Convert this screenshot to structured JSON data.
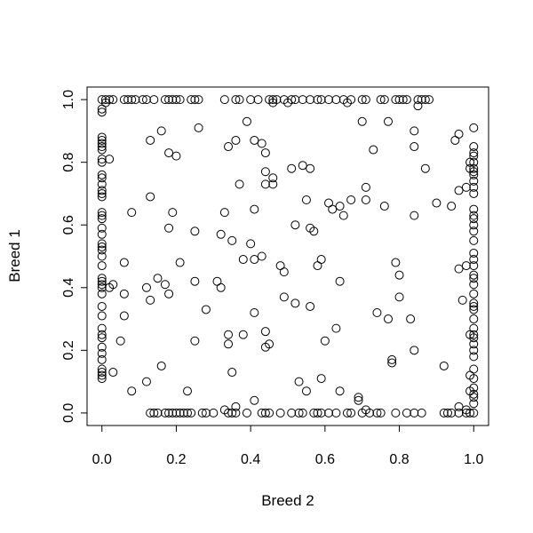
{
  "chart_data": {
    "type": "scatter",
    "title": "",
    "xlabel": "Breed 2",
    "ylabel": "Breed 1",
    "xlim": [
      -0.04,
      1.04
    ],
    "ylim": [
      -0.04,
      1.04
    ],
    "x_ticks": [
      "0.0",
      "0.2",
      "0.4",
      "0.6",
      "0.8",
      "1.0"
    ],
    "y_ticks": [
      "0.0",
      "0.2",
      "0.4",
      "0.6",
      "0.8",
      "1.0"
    ],
    "grid": false,
    "legend": "none",
    "marker": "open-circle",
    "marker_color": "#000000",
    "series": [
      {
        "points": [
          [
            0.0,
            1.0
          ],
          [
            0.01,
            1.0
          ],
          [
            0.02,
            1.0
          ],
          [
            0.03,
            1.0
          ],
          [
            0.06,
            1.0
          ],
          [
            0.07,
            1.0
          ],
          [
            0.08,
            1.0
          ],
          [
            0.09,
            1.0
          ],
          [
            0.11,
            1.0
          ],
          [
            0.12,
            1.0
          ],
          [
            0.14,
            1.0
          ],
          [
            0.17,
            1.0
          ],
          [
            0.18,
            1.0
          ],
          [
            0.19,
            1.0
          ],
          [
            0.2,
            1.0
          ],
          [
            0.21,
            1.0
          ],
          [
            0.24,
            1.0
          ],
          [
            0.25,
            1.0
          ],
          [
            0.26,
            1.0
          ],
          [
            0.33,
            1.0
          ],
          [
            0.36,
            1.0
          ],
          [
            0.37,
            1.0
          ],
          [
            0.4,
            1.0
          ],
          [
            0.42,
            1.0
          ],
          [
            0.45,
            1.0
          ],
          [
            0.46,
            1.0
          ],
          [
            0.47,
            1.0
          ],
          [
            0.49,
            1.0
          ],
          [
            0.51,
            1.0
          ],
          [
            0.52,
            1.0
          ],
          [
            0.54,
            1.0
          ],
          [
            0.56,
            1.0
          ],
          [
            0.58,
            1.0
          ],
          [
            0.59,
            1.0
          ],
          [
            0.61,
            1.0
          ],
          [
            0.63,
            1.0
          ],
          [
            0.65,
            1.0
          ],
          [
            0.67,
            1.0
          ],
          [
            0.7,
            1.0
          ],
          [
            0.71,
            1.0
          ],
          [
            0.75,
            1.0
          ],
          [
            0.76,
            1.0
          ],
          [
            0.79,
            1.0
          ],
          [
            0.8,
            1.0
          ],
          [
            0.81,
            1.0
          ],
          [
            0.82,
            1.0
          ],
          [
            0.85,
            1.0
          ],
          [
            0.86,
            1.0
          ],
          [
            0.87,
            1.0
          ],
          [
            0.88,
            1.0
          ],
          [
            0.01,
            0.99
          ],
          [
            0.46,
            0.99
          ],
          [
            0.5,
            0.99
          ],
          [
            0.66,
            0.99
          ],
          [
            0.85,
            0.98
          ],
          [
            0.13,
            0.0
          ],
          [
            0.14,
            0.0
          ],
          [
            0.15,
            0.0
          ],
          [
            0.17,
            0.0
          ],
          [
            0.18,
            0.0
          ],
          [
            0.19,
            0.0
          ],
          [
            0.2,
            0.0
          ],
          [
            0.21,
            0.0
          ],
          [
            0.22,
            0.0
          ],
          [
            0.23,
            0.0
          ],
          [
            0.24,
            0.0
          ],
          [
            0.27,
            0.0
          ],
          [
            0.28,
            0.0
          ],
          [
            0.3,
            0.0
          ],
          [
            0.34,
            0.0
          ],
          [
            0.35,
            0.0
          ],
          [
            0.36,
            0.0
          ],
          [
            0.39,
            0.0
          ],
          [
            0.43,
            0.0
          ],
          [
            0.44,
            0.0
          ],
          [
            0.45,
            0.0
          ],
          [
            0.48,
            0.0
          ],
          [
            0.51,
            0.0
          ],
          [
            0.53,
            0.0
          ],
          [
            0.54,
            0.0
          ],
          [
            0.57,
            0.0
          ],
          [
            0.58,
            0.0
          ],
          [
            0.59,
            0.0
          ],
          [
            0.61,
            0.0
          ],
          [
            0.63,
            0.0
          ],
          [
            0.66,
            0.0
          ],
          [
            0.67,
            0.0
          ],
          [
            0.7,
            0.0
          ],
          [
            0.72,
            0.0
          ],
          [
            0.74,
            0.0
          ],
          [
            0.75,
            0.0
          ],
          [
            0.79,
            0.0
          ],
          [
            0.82,
            0.0
          ],
          [
            0.84,
            0.0
          ],
          [
            0.86,
            0.0
          ],
          [
            0.92,
            0.0
          ],
          [
            0.93,
            0.0
          ],
          [
            0.94,
            0.0
          ],
          [
            0.96,
            0.0
          ],
          [
            0.98,
            0.0
          ],
          [
            0.99,
            0.0
          ],
          [
            1.0,
            0.0
          ],
          [
            0.33,
            0.01
          ],
          [
            0.36,
            0.02
          ],
          [
            0.69,
            0.05
          ],
          [
            0.71,
            0.01
          ],
          [
            0.96,
            0.02
          ],
          [
            0.98,
            0.01
          ],
          [
            0.0,
            0.11
          ],
          [
            0.0,
            0.12
          ],
          [
            0.0,
            0.13
          ],
          [
            0.0,
            0.14
          ],
          [
            0.0,
            0.17
          ],
          [
            0.0,
            0.19
          ],
          [
            0.0,
            0.21
          ],
          [
            0.0,
            0.24
          ],
          [
            0.0,
            0.25
          ],
          [
            0.0,
            0.27
          ],
          [
            0.0,
            0.31
          ],
          [
            0.0,
            0.34
          ],
          [
            0.0,
            0.38
          ],
          [
            0.0,
            0.4
          ],
          [
            0.0,
            0.41
          ],
          [
            0.0,
            0.42
          ],
          [
            0.0,
            0.43
          ],
          [
            0.0,
            0.47
          ],
          [
            0.0,
            0.5
          ],
          [
            0.0,
            0.52
          ],
          [
            0.0,
            0.53
          ],
          [
            0.0,
            0.54
          ],
          [
            0.0,
            0.57
          ],
          [
            0.0,
            0.59
          ],
          [
            0.0,
            0.62
          ],
          [
            0.0,
            0.63
          ],
          [
            0.0,
            0.64
          ],
          [
            0.0,
            0.69
          ],
          [
            0.0,
            0.7
          ],
          [
            0.0,
            0.71
          ],
          [
            0.0,
            0.73
          ],
          [
            0.0,
            0.75
          ],
          [
            0.0,
            0.76
          ],
          [
            0.0,
            0.8
          ],
          [
            0.0,
            0.81
          ],
          [
            0.0,
            0.84
          ],
          [
            0.0,
            0.85
          ],
          [
            0.0,
            0.86
          ],
          [
            0.0,
            0.87
          ],
          [
            0.0,
            0.88
          ],
          [
            0.0,
            0.96
          ],
          [
            0.0,
            0.97
          ],
          [
            0.02,
            0.81
          ],
          [
            0.02,
            0.4
          ],
          [
            0.03,
            0.13
          ],
          [
            0.03,
            0.41
          ],
          [
            1.0,
            0.91
          ],
          [
            1.0,
            0.85
          ],
          [
            1.0,
            0.83
          ],
          [
            1.0,
            0.82
          ],
          [
            1.0,
            0.8
          ],
          [
            1.0,
            0.78
          ],
          [
            1.0,
            0.77
          ],
          [
            1.0,
            0.76
          ],
          [
            1.0,
            0.74
          ],
          [
            1.0,
            0.72
          ],
          [
            1.0,
            0.7
          ],
          [
            1.0,
            0.65
          ],
          [
            1.0,
            0.63
          ],
          [
            1.0,
            0.62
          ],
          [
            1.0,
            0.6
          ],
          [
            1.0,
            0.58
          ],
          [
            1.0,
            0.55
          ],
          [
            1.0,
            0.51
          ],
          [
            1.0,
            0.49
          ],
          [
            1.0,
            0.47
          ],
          [
            1.0,
            0.44
          ],
          [
            1.0,
            0.43
          ],
          [
            1.0,
            0.41
          ],
          [
            1.0,
            0.38
          ],
          [
            1.0,
            0.35
          ],
          [
            1.0,
            0.34
          ],
          [
            1.0,
            0.33
          ],
          [
            1.0,
            0.3
          ],
          [
            1.0,
            0.27
          ],
          [
            1.0,
            0.25
          ],
          [
            1.0,
            0.24
          ],
          [
            1.0,
            0.22
          ],
          [
            1.0,
            0.2
          ],
          [
            1.0,
            0.18
          ],
          [
            1.0,
            0.14
          ],
          [
            1.0,
            0.11
          ],
          [
            1.0,
            0.08
          ],
          [
            1.0,
            0.06
          ],
          [
            1.0,
            0.05
          ],
          [
            1.0,
            0.03
          ],
          [
            0.99,
            0.8
          ],
          [
            0.99,
            0.78
          ],
          [
            0.99,
            0.25
          ],
          [
            0.99,
            0.12
          ],
          [
            0.99,
            0.07
          ],
          [
            0.98,
            0.72
          ],
          [
            0.98,
            0.47
          ],
          [
            0.05,
            0.23
          ],
          [
            0.06,
            0.31
          ],
          [
            0.06,
            0.38
          ],
          [
            0.06,
            0.48
          ],
          [
            0.08,
            0.64
          ],
          [
            0.08,
            0.07
          ],
          [
            0.12,
            0.1
          ],
          [
            0.12,
            0.4
          ],
          [
            0.13,
            0.87
          ],
          [
            0.13,
            0.36
          ],
          [
            0.13,
            0.69
          ],
          [
            0.15,
            0.43
          ],
          [
            0.16,
            0.9
          ],
          [
            0.16,
            0.15
          ],
          [
            0.17,
            0.41
          ],
          [
            0.18,
            0.83
          ],
          [
            0.18,
            0.59
          ],
          [
            0.18,
            0.38
          ],
          [
            0.19,
            0.64
          ],
          [
            0.2,
            0.82
          ],
          [
            0.21,
            0.48
          ],
          [
            0.23,
            0.07
          ],
          [
            0.25,
            0.58
          ],
          [
            0.25,
            0.42
          ],
          [
            0.25,
            0.23
          ],
          [
            0.26,
            0.91
          ],
          [
            0.28,
            0.33
          ],
          [
            0.31,
            0.42
          ],
          [
            0.32,
            0.4
          ],
          [
            0.32,
            0.57
          ],
          [
            0.33,
            0.64
          ],
          [
            0.34,
            0.85
          ],
          [
            0.34,
            0.25
          ],
          [
            0.34,
            0.22
          ],
          [
            0.35,
            0.55
          ],
          [
            0.35,
            0.13
          ],
          [
            0.36,
            0.87
          ],
          [
            0.37,
            0.73
          ],
          [
            0.38,
            0.49
          ],
          [
            0.38,
            0.25
          ],
          [
            0.39,
            0.93
          ],
          [
            0.4,
            0.54
          ],
          [
            0.41,
            0.87
          ],
          [
            0.41,
            0.65
          ],
          [
            0.41,
            0.32
          ],
          [
            0.41,
            0.49
          ],
          [
            0.41,
            0.04
          ],
          [
            0.43,
            0.5
          ],
          [
            0.43,
            0.86
          ],
          [
            0.44,
            0.77
          ],
          [
            0.44,
            0.73
          ],
          [
            0.44,
            0.83
          ],
          [
            0.44,
            0.26
          ],
          [
            0.44,
            0.21
          ],
          [
            0.45,
            0.22
          ],
          [
            0.46,
            0.73
          ],
          [
            0.46,
            0.75
          ],
          [
            0.48,
            0.47
          ],
          [
            0.49,
            0.45
          ],
          [
            0.49,
            0.37
          ],
          [
            0.51,
            0.78
          ],
          [
            0.52,
            0.6
          ],
          [
            0.52,
            0.35
          ],
          [
            0.53,
            0.1
          ],
          [
            0.54,
            0.79
          ],
          [
            0.55,
            0.07
          ],
          [
            0.55,
            0.68
          ],
          [
            0.56,
            0.78
          ],
          [
            0.56,
            0.59
          ],
          [
            0.56,
            0.34
          ],
          [
            0.57,
            0.58
          ],
          [
            0.58,
            0.47
          ],
          [
            0.59,
            0.49
          ],
          [
            0.59,
            0.11
          ],
          [
            0.6,
            0.23
          ],
          [
            0.61,
            0.67
          ],
          [
            0.62,
            0.65
          ],
          [
            0.63,
            0.27
          ],
          [
            0.64,
            0.42
          ],
          [
            0.64,
            0.66
          ],
          [
            0.65,
            0.63
          ],
          [
            0.64,
            0.07
          ],
          [
            0.67,
            0.68
          ],
          [
            0.69,
            0.04
          ],
          [
            0.7,
            0.93
          ],
          [
            0.71,
            0.72
          ],
          [
            0.71,
            0.68
          ],
          [
            0.73,
            0.84
          ],
          [
            0.74,
            0.32
          ],
          [
            0.76,
            0.66
          ],
          [
            0.77,
            0.3
          ],
          [
            0.77,
            0.93
          ],
          [
            0.78,
            0.16
          ],
          [
            0.78,
            0.17
          ],
          [
            0.79,
            0.48
          ],
          [
            0.8,
            0.44
          ],
          [
            0.8,
            0.37
          ],
          [
            0.83,
            0.3
          ],
          [
            0.84,
            0.2
          ],
          [
            0.84,
            0.9
          ],
          [
            0.84,
            0.85
          ],
          [
            0.84,
            0.63
          ],
          [
            0.87,
            0.78
          ],
          [
            0.9,
            0.67
          ],
          [
            0.92,
            0.15
          ],
          [
            0.94,
            0.66
          ],
          [
            0.95,
            0.87
          ],
          [
            0.96,
            0.89
          ],
          [
            0.96,
            0.71
          ],
          [
            0.96,
            0.46
          ],
          [
            0.97,
            0.36
          ]
        ]
      }
    ]
  }
}
